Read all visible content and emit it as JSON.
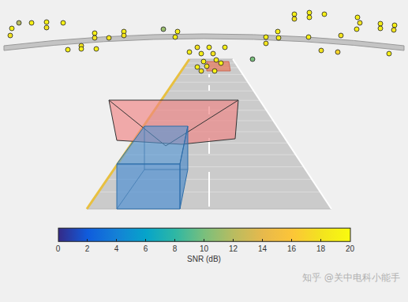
{
  "chart_data": {
    "type": "scatter",
    "x": [
      15,
      13,
      24,
      40,
      59,
      59,
      80,
      120,
      120,
      157,
      157,
      86,
      103,
      103,
      122,
      138,
      207,
      222,
      225,
      320,
      337,
      337,
      352,
      353,
      373,
      373,
      392,
      392,
      411,
      432,
      452,
      453,
      456,
      482,
      482,
      500,
      499,
      493,
      407,
      428,
      391,
      240,
      250,
      255,
      258,
      265,
      270,
      274,
      280,
      262,
      250,
      285,
      255,
      272
    ],
    "y": [
      232,
      223,
      239,
      239,
      240,
      233,
      239,
      226,
      220,
      228,
      223,
      205,
      210,
      206,
      206,
      220,
      231,
      221,
      228,
      193,
      221,
      213,
      228,
      220,
      250,
      244,
      252,
      246,
      250,
      223,
      231,
      246,
      239,
      238,
      232,
      236,
      230,
      200,
      204,
      202,
      221,
      202,
      208,
      200,
      190,
      208,
      200,
      192,
      188,
      184,
      183,
      208,
      178,
      178
    ],
    "snr": [
      19,
      18,
      12,
      19,
      19,
      18,
      19,
      19,
      18,
      19,
      18,
      19,
      18,
      19,
      19,
      18,
      11,
      19,
      19,
      10,
      19,
      18,
      19,
      19,
      19,
      18,
      19,
      19,
      19,
      18,
      19,
      19,
      18,
      19,
      19,
      19,
      18,
      19,
      18,
      17,
      19,
      19,
      18,
      19,
      19,
      19,
      18,
      19,
      19,
      18,
      19,
      19,
      18,
      19
    ],
    "xlim": [
      0,
      517
    ],
    "ylim": [
      0,
      268
    ],
    "tick_labels": false,
    "grid": false,
    "colorbar": {
      "title": "SNR (dB)",
      "range": [
        0,
        20
      ],
      "ticks": [
        0,
        2,
        4,
        6,
        8,
        10,
        12,
        14,
        16,
        18,
        20
      ]
    }
  },
  "watermark": "知乎 @关中电科小能手"
}
